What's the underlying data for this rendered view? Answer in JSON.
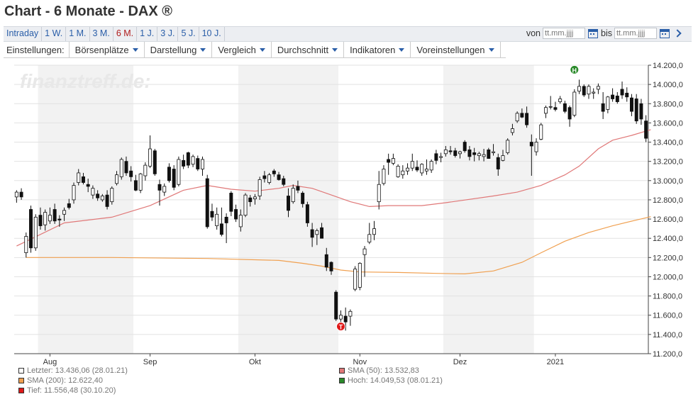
{
  "page": {
    "title": "Chart - 6 Monate - DAX ®"
  },
  "periods": [
    {
      "label": "Intraday",
      "active": false
    },
    {
      "label": "1 W.",
      "active": false
    },
    {
      "label": "1 M.",
      "active": false
    },
    {
      "label": "3 M.",
      "active": false
    },
    {
      "label": "6 M.",
      "active": true
    },
    {
      "label": "1 J.",
      "active": false
    },
    {
      "label": "3 J.",
      "active": false
    },
    {
      "label": "5 J.",
      "active": false
    },
    {
      "label": "10 J.",
      "active": false
    }
  ],
  "daterange": {
    "from_label": "von",
    "from_placeholder": "tt.mm.jjjj",
    "to_label": "bis",
    "to_placeholder": "tt.mm.jjjj",
    "calendar_icon": "calendar-icon",
    "next_icon": "chevron-right-icon"
  },
  "settings": {
    "label": "Einstellungen:",
    "menus": [
      "Börsenplätze",
      "Darstellung",
      "Vergleich",
      "Durchschnitt",
      "Indikatoren",
      "Voreinstellungen"
    ]
  },
  "legend": {
    "last": "Letzter: 13.436,06 (28.01.21)",
    "sma200": "SMA (200): 12.622,40",
    "low": "Tief: 11.556,48 (30.10.20)",
    "sma50": "SMA (50): 13.532,83",
    "high": "Hoch: 14.049,53 (08.01.21)"
  },
  "colors": {
    "sma50": "#e07878",
    "sma200": "#f0a050",
    "low_marker": "#e01818",
    "high_marker": "#2a8a2a",
    "month_band": "#f2f2f2"
  },
  "chart_data": {
    "type": "candlestick",
    "watermark": "finanztreff.de:",
    "ylim": [
      11200,
      14200
    ],
    "yticks": [
      11200,
      11400,
      11600,
      11800,
      12000,
      12200,
      12400,
      12600,
      12800,
      13000,
      13200,
      13400,
      13600,
      13800,
      14000,
      14200
    ],
    "ytick_labels": [
      "11.200,0",
      "11.400,0",
      "11.600,0",
      "11.800,0",
      "12.000,0",
      "12.200,0",
      "12.400,0",
      "12.600,0",
      "12.800,0",
      "13.000,0",
      "13.200,0",
      "13.400,0",
      "13.600,0",
      "13.800,0",
      "14.000,0",
      "14.200,0"
    ],
    "xlabels": [
      "Aug",
      "Sep",
      "Okt",
      "Nov",
      "Dez",
      "2021"
    ],
    "xlabel_index": [
      7,
      28,
      50,
      72,
      93,
      113
    ],
    "shaded_months": [
      [
        5,
        25
      ],
      [
        47,
        68
      ],
      [
        90,
        109
      ]
    ],
    "markers": [
      {
        "label": "T",
        "index": 68,
        "value": 11556.48,
        "type": "low"
      },
      {
        "label": "H",
        "index": 117,
        "value": 14049.53,
        "type": "high"
      }
    ],
    "ohlc": [
      [
        12830,
        12900,
        12770,
        12880
      ],
      [
        12880,
        12920,
        12800,
        12830
      ],
      [
        12250,
        12460,
        12200,
        12420
      ],
      [
        12700,
        12740,
        12250,
        12300
      ],
      [
        12300,
        12650,
        12270,
        12620
      ],
      [
        12640,
        12720,
        12490,
        12530
      ],
      [
        12540,
        12700,
        12480,
        12670
      ],
      [
        12580,
        12720,
        12550,
        12640
      ],
      [
        12700,
        12760,
        12550,
        12580
      ],
      [
        12600,
        12640,
        12520,
        12590
      ],
      [
        12650,
        12720,
        12580,
        12690
      ],
      [
        12760,
        12810,
        12700,
        12720
      ],
      [
        12800,
        12980,
        12760,
        12950
      ],
      [
        12980,
        13120,
        12950,
        13080
      ],
      [
        13040,
        13080,
        12960,
        12980
      ],
      [
        12960,
        13020,
        12880,
        12940
      ],
      [
        12850,
        12950,
        12810,
        12920
      ],
      [
        12860,
        12900,
        12790,
        12820
      ],
      [
        12800,
        12860,
        12780,
        12840
      ],
      [
        12850,
        12900,
        12700,
        12730
      ],
      [
        12780,
        12940,
        12750,
        12920
      ],
      [
        12970,
        13100,
        12950,
        13060
      ],
      [
        13040,
        13240,
        13010,
        13220
      ],
      [
        13200,
        13250,
        13050,
        13080
      ],
      [
        13100,
        13150,
        12990,
        13040
      ],
      [
        13000,
        13060,
        12890,
        12900
      ],
      [
        12900,
        13080,
        12870,
        13070
      ],
      [
        13050,
        13190,
        13000,
        13160
      ],
      [
        13150,
        13470,
        13130,
        13330
      ],
      [
        13310,
        13330,
        13050,
        13070
      ],
      [
        12960,
        13010,
        12740,
        12900
      ],
      [
        12880,
        12970,
        12840,
        12940
      ],
      [
        13140,
        13180,
        12980,
        13000
      ],
      [
        13120,
        13160,
        12900,
        12930
      ],
      [
        12960,
        13250,
        12940,
        13220
      ],
      [
        13210,
        13270,
        13120,
        13150
      ],
      [
        13290,
        13300,
        13130,
        13160
      ],
      [
        13170,
        13270,
        13140,
        13250
      ],
      [
        13230,
        13260,
        13100,
        13120
      ],
      [
        13120,
        13250,
        13050,
        13220
      ],
      [
        13020,
        13060,
        12500,
        12520
      ],
      [
        12680,
        12760,
        12580,
        12620
      ],
      [
        12530,
        12720,
        12490,
        12650
      ],
      [
        12550,
        12720,
        12420,
        12440
      ],
      [
        12620,
        12660,
        12350,
        12560
      ],
      [
        12870,
        12890,
        12630,
        12680
      ],
      [
        12700,
        12750,
        12570,
        12600
      ],
      [
        12520,
        12700,
        12470,
        12640
      ],
      [
        12640,
        12870,
        12620,
        12850
      ],
      [
        12820,
        12850,
        12730,
        12780
      ],
      [
        12810,
        12860,
        12750,
        12830
      ],
      [
        12840,
        13040,
        12800,
        13010
      ],
      [
        13050,
        13100,
        12980,
        13020
      ],
      [
        12980,
        13080,
        12960,
        13060
      ],
      [
        13100,
        13120,
        13040,
        13070
      ],
      [
        13060,
        13090,
        13000,
        13010
      ],
      [
        13020,
        13050,
        12940,
        12960
      ],
      [
        12840,
        12920,
        12620,
        12690
      ],
      [
        12780,
        12960,
        12760,
        12920
      ],
      [
        12940,
        13000,
        12870,
        12900
      ],
      [
        12870,
        12890,
        12720,
        12760
      ],
      [
        12750,
        12780,
        12520,
        12560
      ],
      [
        12490,
        12560,
        12310,
        12410
      ],
      [
        12440,
        12500,
        12330,
        12480
      ],
      [
        12510,
        12560,
        12400,
        12400
      ],
      [
        12230,
        12300,
        12060,
        12100
      ],
      [
        12150,
        12160,
        12020,
        12060
      ],
      [
        11840,
        11860,
        11540,
        11560
      ],
      [
        11560,
        11650,
        11450,
        11600
      ],
      [
        11590,
        11680,
        11440,
        11530
      ],
      [
        11590,
        11660,
        11490,
        11640
      ],
      [
        11870,
        12110,
        11850,
        12080
      ],
      [
        11890,
        12150,
        11860,
        12140
      ],
      [
        12230,
        12320,
        12000,
        12290
      ],
      [
        12360,
        12560,
        12340,
        12440
      ],
      [
        12440,
        12580,
        12380,
        12500
      ],
      [
        12780,
        13100,
        12700,
        12960
      ],
      [
        12970,
        13160,
        12950,
        13120
      ],
      [
        13220,
        13280,
        13060,
        13190
      ],
      [
        13180,
        13280,
        13160,
        13230
      ],
      [
        13040,
        13170,
        13030,
        13150
      ],
      [
        13060,
        13160,
        13020,
        13100
      ],
      [
        13100,
        13180,
        13060,
        13130
      ],
      [
        13130,
        13280,
        13100,
        13200
      ],
      [
        13140,
        13210,
        13090,
        13110
      ],
      [
        13080,
        13180,
        13050,
        13170
      ],
      [
        13100,
        13220,
        13060,
        13120
      ],
      [
        13110,
        13220,
        13080,
        13200
      ],
      [
        13280,
        13320,
        13170,
        13210
      ],
      [
        13240,
        13290,
        13190,
        13250
      ],
      [
        13280,
        13360,
        13250,
        13320
      ],
      [
        13310,
        13360,
        13270,
        13300
      ],
      [
        13310,
        13340,
        13240,
        13260
      ],
      [
        13280,
        13310,
        13230,
        13300
      ],
      [
        13400,
        13420,
        13290,
        13310
      ],
      [
        13320,
        13360,
        13210,
        13250
      ],
      [
        13290,
        13340,
        13200,
        13270
      ],
      [
        13260,
        13300,
        13210,
        13280
      ],
      [
        13250,
        13330,
        13200,
        13270
      ],
      [
        13320,
        13340,
        13230,
        13230
      ],
      [
        13290,
        13380,
        13260,
        13300
      ],
      [
        13240,
        13280,
        13050,
        13120
      ],
      [
        13210,
        13320,
        13200,
        13260
      ],
      [
        13290,
        13440,
        13270,
        13420
      ],
      [
        13500,
        13590,
        13470,
        13540
      ],
      [
        13620,
        13720,
        13600,
        13700
      ],
      [
        13700,
        13750,
        13650,
        13660
      ],
      [
        13700,
        13770,
        13550,
        13580
      ],
      [
        13400,
        13480,
        13050,
        13360
      ],
      [
        13300,
        13440,
        13260,
        13400
      ],
      [
        13430,
        13600,
        13420,
        13580
      ],
      [
        13700,
        13780,
        13650,
        13760
      ],
      [
        13770,
        13880,
        13740,
        13770
      ],
      [
        13760,
        13820,
        13720,
        13740
      ],
      [
        13820,
        13880,
        13800,
        13850
      ],
      [
        13800,
        13830,
        13700,
        13720
      ],
      [
        13760,
        13780,
        13560,
        13640
      ],
      [
        13680,
        13950,
        13660,
        13920
      ],
      [
        13930,
        14050,
        13900,
        13980
      ],
      [
        13980,
        14000,
        13870,
        13890
      ],
      [
        13900,
        14000,
        13850,
        13980
      ],
      [
        13910,
        13960,
        13850,
        13920
      ],
      [
        13950,
        14010,
        13900,
        13980
      ],
      [
        13800,
        13920,
        13640,
        13720
      ],
      [
        13740,
        13880,
        13700,
        13870
      ],
      [
        13890,
        13960,
        13820,
        13850
      ],
      [
        13880,
        13920,
        13800,
        13820
      ],
      [
        13950,
        14030,
        13850,
        13890
      ],
      [
        13910,
        13970,
        13820,
        13870
      ],
      [
        13860,
        13900,
        13670,
        13720
      ],
      [
        13850,
        13900,
        13590,
        13620
      ],
      [
        13800,
        13850,
        13580,
        13640
      ],
      [
        13620,
        13680,
        13400,
        13440
      ]
    ],
    "sma50": [
      [
        0,
        12320
      ],
      [
        10,
        12560
      ],
      [
        20,
        12620
      ],
      [
        28,
        12740
      ],
      [
        35,
        12900
      ],
      [
        40,
        12950
      ],
      [
        45,
        12910
      ],
      [
        50,
        12890
      ],
      [
        55,
        12920
      ],
      [
        58,
        12950
      ],
      [
        62,
        12920
      ],
      [
        66,
        12850
      ],
      [
        70,
        12780
      ],
      [
        74,
        12730
      ],
      [
        78,
        12740
      ],
      [
        85,
        12740
      ],
      [
        90,
        12770
      ],
      [
        100,
        12840
      ],
      [
        105,
        12880
      ],
      [
        110,
        12950
      ],
      [
        115,
        13060
      ],
      [
        118,
        13150
      ],
      [
        122,
        13330
      ],
      [
        125,
        13420
      ],
      [
        129,
        13470
      ],
      [
        133,
        13530
      ]
    ],
    "sma200": [
      [
        2,
        12200
      ],
      [
        20,
        12200
      ],
      [
        40,
        12190
      ],
      [
        55,
        12170
      ],
      [
        60,
        12140
      ],
      [
        64,
        12110
      ],
      [
        68,
        12070
      ],
      [
        72,
        12050
      ],
      [
        80,
        12045
      ],
      [
        88,
        12035
      ],
      [
        94,
        12030
      ],
      [
        100,
        12060
      ],
      [
        106,
        12150
      ],
      [
        110,
        12250
      ],
      [
        115,
        12370
      ],
      [
        120,
        12460
      ],
      [
        125,
        12530
      ],
      [
        130,
        12590
      ],
      [
        133,
        12625
      ]
    ]
  }
}
